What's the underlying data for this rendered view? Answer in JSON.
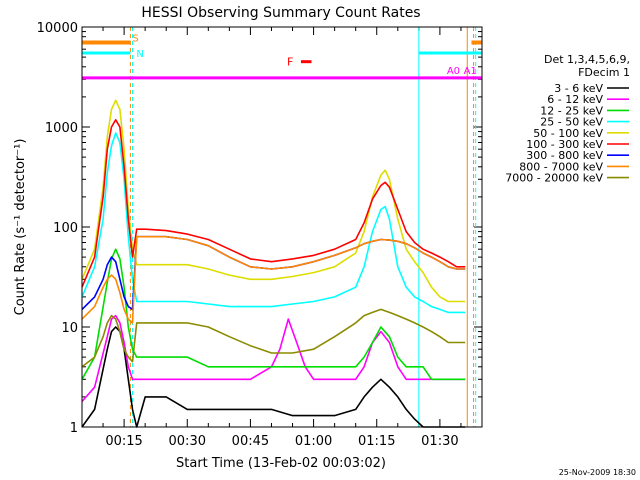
{
  "chart_data": {
    "type": "line",
    "title": "HESSI Observing Summary Count Rates",
    "xlabel": "Start Time (13-Feb-02 00:03:02)",
    "ylabel": "Count Rate (s⁻¹ detector⁻¹)",
    "x_unit": "minutes after 00:00 UT",
    "xlim": [
      5,
      100
    ],
    "ylim": [
      1,
      10000
    ],
    "y_scale": "log",
    "x_ticks": [
      {
        "value": 15,
        "label": "00:15"
      },
      {
        "value": 30,
        "label": "00:30"
      },
      {
        "value": 45,
        "label": "00:45"
      },
      {
        "value": 60,
        "label": "01:00"
      },
      {
        "value": 75,
        "label": "01:15"
      },
      {
        "value": 90,
        "label": "01:30"
      }
    ],
    "y_ticks": [
      {
        "value": 1,
        "label": "1"
      },
      {
        "value": 10,
        "label": "10"
      },
      {
        "value": 100,
        "label": "100"
      },
      {
        "value": 1000,
        "label": "1000"
      },
      {
        "value": 10000,
        "label": "10000"
      }
    ],
    "legend": {
      "placement": "right",
      "header": [
        "Det 1,3,4,5,6,9,",
        "FDecim 1"
      ],
      "entries": [
        {
          "label": "3 - 6 keV",
          "color": "#000000"
        },
        {
          "label": "6 - 12 keV",
          "color": "#ff00ff"
        },
        {
          "label": "12 - 25 keV",
          "color": "#00dd00"
        },
        {
          "label": "25 - 50 keV",
          "color": "#00ffff"
        },
        {
          "label": "50 - 100 keV",
          "color": "#dddd00"
        },
        {
          "label": "100 - 300 keV",
          "color": "#ff0000"
        },
        {
          "label": "300 - 800 keV",
          "color": "#0000ff"
        },
        {
          "label": "800 - 7000 keV",
          "color": "#ff8800"
        },
        {
          "label": "7000 - 20000 keV",
          "color": "#8b8b00"
        }
      ]
    },
    "series": [
      {
        "name": "3 - 6 keV",
        "color": "#000000",
        "x": [
          5,
          8,
          11,
          12,
          13,
          14,
          15,
          16,
          17,
          18,
          20,
          25,
          30,
          35,
          40,
          45,
          50,
          55,
          60,
          65,
          70,
          72,
          74,
          76,
          78,
          80,
          82,
          84,
          86,
          88,
          90,
          92,
          94,
          96
        ],
        "y": [
          1,
          1.5,
          6,
          9,
          10,
          9,
          6,
          3,
          1.5,
          1,
          2,
          2,
          1.5,
          1.5,
          1.5,
          1.5,
          1.5,
          1.3,
          1.3,
          1.3,
          1.5,
          2,
          2.5,
          3,
          2.5,
          2,
          1.5,
          1.2,
          1,
          1,
          1,
          1,
          1,
          1
        ]
      },
      {
        "name": "6 - 12 keV",
        "color": "#ff00ff",
        "x": [
          5,
          8,
          11,
          12,
          13,
          14,
          15,
          16,
          17,
          18,
          20,
          25,
          30,
          35,
          40,
          45,
          50,
          52,
          54,
          56,
          58,
          60,
          65,
          70,
          72,
          74,
          76,
          78,
          80,
          82,
          84,
          86,
          88,
          90,
          92,
          94,
          96
        ],
        "y": [
          1.8,
          2.5,
          8,
          12,
          13,
          11,
          7,
          4,
          3,
          3,
          3,
          3,
          3,
          3,
          3,
          3,
          4,
          6,
          12,
          7,
          4,
          3,
          3,
          3,
          4,
          7,
          9,
          7,
          4,
          3,
          3,
          3,
          3,
          3,
          3,
          3,
          3
        ]
      },
      {
        "name": "12 - 25 keV",
        "color": "#00dd00",
        "x": [
          5,
          8,
          11,
          12,
          13,
          14,
          15,
          16,
          17,
          18,
          20,
          25,
          30,
          35,
          40,
          45,
          50,
          55,
          60,
          65,
          70,
          72,
          74,
          76,
          78,
          80,
          82,
          84,
          86,
          88,
          90,
          92,
          94,
          96
        ],
        "y": [
          3,
          5,
          28,
          48,
          60,
          48,
          25,
          10,
          6,
          5,
          5,
          5,
          5,
          4,
          4,
          4,
          4,
          4,
          4,
          4,
          4,
          5,
          7,
          10,
          8,
          5,
          4,
          4,
          4,
          3,
          3,
          3,
          3,
          3
        ]
      },
      {
        "name": "25 - 50 keV",
        "color": "#00ffff",
        "x": [
          5,
          8,
          10,
          11,
          12,
          13,
          14,
          15,
          16,
          17,
          18,
          20,
          25,
          30,
          35,
          40,
          45,
          50,
          55,
          60,
          65,
          70,
          72,
          74,
          76,
          77,
          78,
          80,
          82,
          84,
          86,
          88,
          90,
          92,
          94,
          96
        ],
        "y": [
          20,
          40,
          120,
          350,
          650,
          870,
          700,
          300,
          80,
          30,
          18,
          18,
          18,
          18,
          17,
          16,
          16,
          16,
          17,
          18,
          20,
          25,
          40,
          90,
          150,
          160,
          120,
          40,
          25,
          20,
          18,
          16,
          15,
          14,
          14,
          14
        ]
      },
      {
        "name": "50 - 100 keV",
        "color": "#dddd00",
        "x": [
          5,
          8,
          10,
          11,
          12,
          13,
          14,
          15,
          16,
          17,
          18,
          20,
          25,
          30,
          35,
          40,
          45,
          50,
          55,
          60,
          65,
          70,
          72,
          74,
          76,
          77,
          78,
          80,
          82,
          84,
          86,
          88,
          90,
          92,
          94,
          96
        ],
        "y": [
          30,
          60,
          250,
          800,
          1500,
          1850,
          1500,
          600,
          150,
          60,
          42,
          42,
          42,
          42,
          38,
          33,
          30,
          30,
          32,
          35,
          40,
          55,
          90,
          200,
          330,
          370,
          300,
          120,
          60,
          45,
          35,
          25,
          20,
          18,
          18,
          18
        ]
      },
      {
        "name": "100 - 300 keV",
        "color": "#ff0000",
        "x": [
          5,
          8,
          10,
          11,
          12,
          13,
          14,
          15,
          16,
          17,
          18,
          20,
          25,
          30,
          35,
          40,
          45,
          50,
          55,
          60,
          65,
          70,
          72,
          74,
          76,
          77,
          78,
          80,
          82,
          84,
          86,
          88,
          90,
          92,
          94,
          96
        ],
        "y": [
          25,
          50,
          200,
          600,
          1000,
          1180,
          1000,
          400,
          120,
          50,
          95,
          95,
          92,
          85,
          75,
          60,
          48,
          45,
          48,
          52,
          60,
          75,
          110,
          190,
          260,
          280,
          250,
          150,
          90,
          70,
          60,
          55,
          50,
          45,
          40,
          40
        ]
      },
      {
        "name": "300 - 800 keV",
        "color": "#0000ff",
        "x": [
          5,
          8,
          10,
          11,
          12,
          13,
          14,
          15,
          16,
          17,
          18,
          20,
          25,
          30,
          35,
          40,
          45,
          50,
          55,
          60,
          65,
          70,
          72,
          74,
          76,
          78,
          80,
          82,
          84,
          86,
          88,
          90,
          92,
          94,
          96
        ],
        "y": [
          15,
          20,
          30,
          42,
          50,
          45,
          30,
          20,
          16,
          15,
          80,
          80,
          80,
          75,
          65,
          50,
          40,
          38,
          40,
          45,
          52,
          62,
          68,
          72,
          75,
          74,
          72,
          68,
          62,
          55,
          50,
          45,
          40,
          38,
          38
        ]
      },
      {
        "name": "800 - 7000 keV",
        "color": "#ff8800",
        "x": [
          5,
          8,
          10,
          11,
          12,
          13,
          14,
          15,
          16,
          17,
          18,
          20,
          25,
          30,
          35,
          40,
          45,
          50,
          55,
          60,
          65,
          70,
          72,
          74,
          76,
          78,
          80,
          82,
          84,
          86,
          88,
          90,
          92,
          94,
          96
        ],
        "y": [
          12,
          16,
          25,
          30,
          33,
          30,
          22,
          15,
          12,
          11,
          80,
          80,
          80,
          75,
          65,
          50,
          40,
          38,
          40,
          45,
          52,
          62,
          68,
          72,
          75,
          74,
          72,
          68,
          62,
          55,
          50,
          45,
          40,
          38,
          38
        ]
      },
      {
        "name": "7000 - 20000 keV",
        "color": "#8b8b00",
        "x": [
          5,
          8,
          10,
          11,
          12,
          13,
          14,
          15,
          16,
          17,
          18,
          20,
          25,
          30,
          35,
          40,
          45,
          50,
          55,
          60,
          65,
          70,
          72,
          74,
          76,
          78,
          80,
          82,
          84,
          86,
          88,
          90,
          92,
          94,
          96
        ],
        "y": [
          4,
          5,
          8,
          11,
          13,
          12,
          9,
          6,
          5,
          4.5,
          11,
          11,
          11,
          11,
          10,
          8,
          6.5,
          5.5,
          5.5,
          6,
          8,
          11,
          13,
          14,
          15,
          14,
          13,
          12,
          11,
          10,
          9,
          8,
          7,
          7,
          7
        ]
      }
    ],
    "annotations": {
      "attenuator": {
        "color": "#ff8800",
        "y": 7000,
        "segments": [
          [
            5,
            16.5
          ],
          [
            97.5,
            100
          ]
        ]
      },
      "saa": {
        "label": "S",
        "color": "#ff8800",
        "x": 16.5
      },
      "night": {
        "label": "N",
        "color": "#00ffff",
        "x": 16.5,
        "y": 5500,
        "segments": [
          [
            5,
            16.5
          ],
          [
            85,
            100
          ]
        ]
      },
      "flare": {
        "label": "F",
        "color": "#ff0000",
        "x1": 57,
        "x2": 59.5,
        "y": 4500
      },
      "attenuator_state": {
        "color": "#ff00ff",
        "y": 3100,
        "x1": 5,
        "x2": 100,
        "labels": [
          {
            "text": "A0",
            "x": 94.5
          },
          {
            "text": "A1",
            "x": 98.5
          }
        ]
      },
      "vlines": [
        {
          "x": 16.5,
          "color": "#ff8800",
          "dashed": true
        },
        {
          "x": 17.0,
          "color": "#00ffff",
          "dashed": true
        },
        {
          "x": 85.0,
          "color": "#00ffff",
          "dashed": false
        },
        {
          "x": 96.5,
          "color": "#ff8800",
          "dashed": false
        },
        {
          "x": 98.0,
          "color": "#ff8800",
          "dashed": true
        },
        {
          "x": 98.5,
          "color": "#00ffff",
          "dashed": true
        }
      ]
    }
  },
  "footer": {
    "timestamp": "25-Nov-2009 18:30"
  }
}
